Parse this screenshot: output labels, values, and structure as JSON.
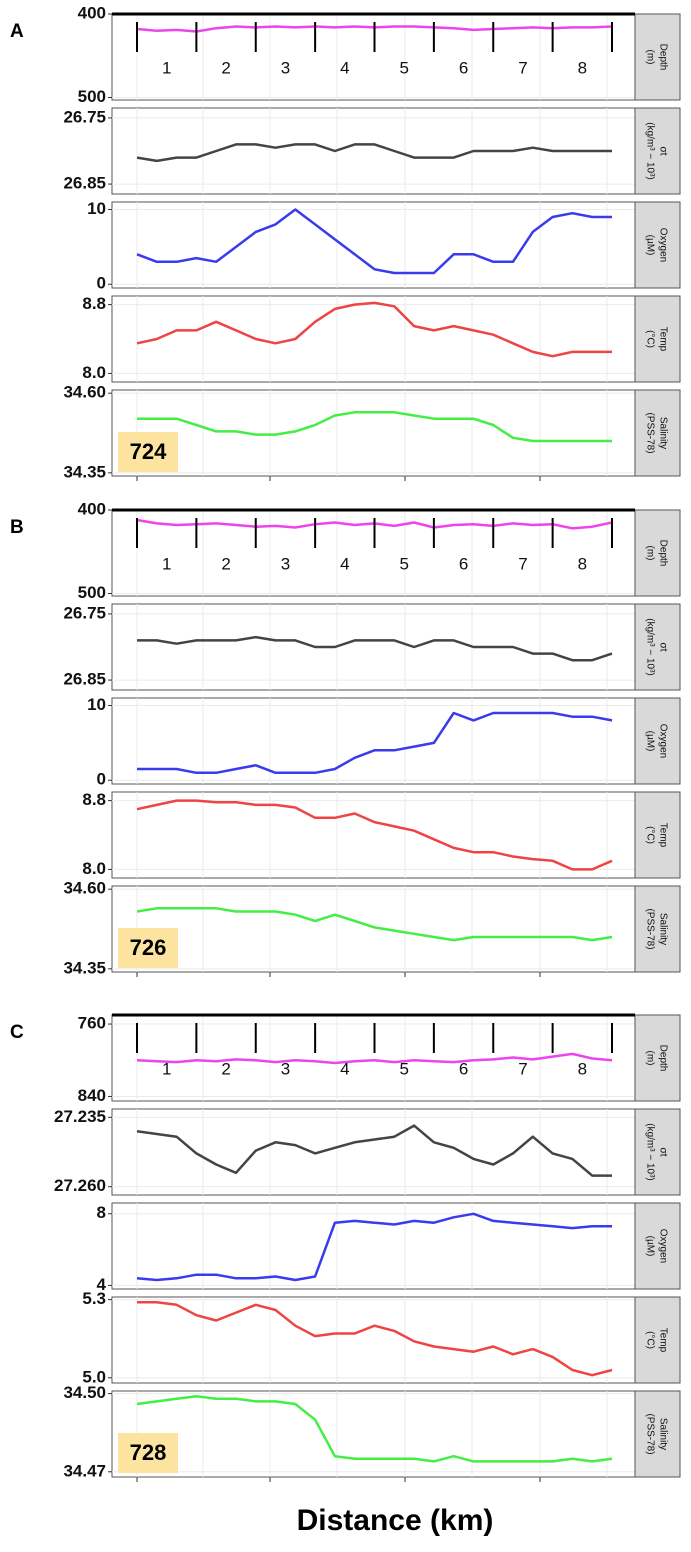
{
  "figure": {
    "xlabel": "Distance (km)"
  },
  "chart_data": [
    {
      "type": "line",
      "panel_label": "A",
      "station": "724",
      "segments": [
        "1",
        "2",
        "3",
        "4",
        "5",
        "6",
        "7",
        "8"
      ],
      "panels": [
        {
          "ylabel": [
            "Depth",
            "(m)"
          ],
          "color": "#ee44ee",
          "ylim": [
            503,
            400
          ],
          "yticks": [
            400,
            500
          ],
          "values": [
            418,
            420,
            419,
            421,
            417,
            415,
            416,
            415,
            416,
            415,
            416,
            415,
            416,
            415,
            415,
            416,
            417,
            419,
            418,
            417,
            416,
            417,
            416,
            416,
            415
          ]
        },
        {
          "ylabel": [
            "σt",
            "(kg/m³ − 10³)"
          ],
          "color": "#444444",
          "ylim": [
            26.865,
            26.735
          ],
          "yticks": [
            26.75,
            26.85
          ],
          "values": [
            26.81,
            26.815,
            26.81,
            26.81,
            26.8,
            26.79,
            26.79,
            26.795,
            26.79,
            26.79,
            26.8,
            26.79,
            26.79,
            26.8,
            26.81,
            26.81,
            26.81,
            26.8,
            26.8,
            26.8,
            26.795,
            26.8,
            26.8,
            26.8,
            26.8
          ]
        },
        {
          "ylabel": [
            "Oxygen",
            "(µM)"
          ],
          "color": "#3a3aee",
          "ylim": [
            -0.5,
            11
          ],
          "yticks": [
            0,
            10
          ],
          "values": [
            4,
            3,
            3,
            3.5,
            3,
            5,
            7,
            8,
            10,
            8,
            6,
            4,
            2,
            1.5,
            1.5,
            1.5,
            4,
            4,
            3,
            3,
            7,
            9,
            9.5,
            9,
            9
          ]
        },
        {
          "ylabel": [
            "Temp",
            "(°C)"
          ],
          "color": "#ee4444",
          "ylim": [
            7.9,
            8.9
          ],
          "yticks": [
            {
              "value": 8,
              "label": "8.0"
            },
            8.8
          ],
          "values": [
            8.35,
            8.4,
            8.5,
            8.5,
            8.6,
            8.5,
            8.4,
            8.35,
            8.4,
            8.6,
            8.75,
            8.8,
            8.82,
            8.78,
            8.55,
            8.5,
            8.55,
            8.5,
            8.45,
            8.35,
            8.25,
            8.2,
            8.25,
            8.25,
            8.25
          ]
        },
        {
          "ylabel": [
            "Salinity",
            "(PSS-78)"
          ],
          "color": "#44ee44",
          "ylim": [
            34.34,
            34.61
          ],
          "yticks": [
            34.35,
            {
              "value": 34.6,
              "label": "34.60"
            }
          ],
          "values": [
            34.52,
            34.52,
            34.52,
            34.5,
            34.48,
            34.48,
            34.47,
            34.47,
            34.48,
            34.5,
            34.53,
            34.54,
            34.54,
            34.54,
            34.53,
            34.52,
            34.52,
            34.52,
            34.5,
            34.46,
            34.45,
            34.45,
            34.45,
            34.45,
            34.45
          ]
        }
      ]
    },
    {
      "type": "line",
      "panel_label": "B",
      "station": "726",
      "segments": [
        "1",
        "2",
        "3",
        "4",
        "5",
        "6",
        "7",
        "8"
      ],
      "panels": [
        {
          "ylabel": [
            "Depth",
            "(m)"
          ],
          "color": "#ee44ee",
          "ylim": [
            503,
            400
          ],
          "yticks": [
            400,
            500
          ],
          "values": [
            412,
            416,
            418,
            417,
            416,
            418,
            420,
            419,
            421,
            417,
            415,
            418,
            416,
            419,
            415,
            421,
            418,
            417,
            419,
            416,
            418,
            417,
            422,
            420,
            415
          ]
        },
        {
          "ylabel": [
            "σt",
            "(kg/m³ − 10³)"
          ],
          "color": "#444444",
          "ylim": [
            26.865,
            26.735
          ],
          "yticks": [
            26.75,
            26.85
          ],
          "values": [
            26.79,
            26.79,
            26.795,
            26.79,
            26.79,
            26.79,
            26.785,
            26.79,
            26.79,
            26.8,
            26.8,
            26.79,
            26.79,
            26.79,
            26.8,
            26.79,
            26.79,
            26.8,
            26.8,
            26.8,
            26.81,
            26.81,
            26.82,
            26.82,
            26.81
          ]
        },
        {
          "ylabel": [
            "Oxygen",
            "(µM)"
          ],
          "color": "#3a3aee",
          "ylim": [
            -0.5,
            11
          ],
          "yticks": [
            0,
            10
          ],
          "values": [
            1.5,
            1.5,
            1.5,
            1,
            1,
            1.5,
            2,
            1,
            1,
            1,
            1.5,
            3,
            4,
            4,
            4.5,
            5,
            9,
            8,
            9,
            9,
            9,
            9,
            8.5,
            8.5,
            8
          ]
        },
        {
          "ylabel": [
            "Temp",
            "(°C)"
          ],
          "color": "#ee4444",
          "ylim": [
            7.9,
            8.9
          ],
          "yticks": [
            {
              "value": 8,
              "label": "8.0"
            },
            8.8
          ],
          "values": [
            8.7,
            8.75,
            8.8,
            8.8,
            8.78,
            8.78,
            8.75,
            8.75,
            8.72,
            8.6,
            8.6,
            8.65,
            8.55,
            8.5,
            8.45,
            8.35,
            8.25,
            8.2,
            8.2,
            8.15,
            8.12,
            8.1,
            8,
            8,
            8.1
          ]
        },
        {
          "ylabel": [
            "Salinity",
            "(PSS-78)"
          ],
          "color": "#44ee44",
          "ylim": [
            34.34,
            34.61
          ],
          "yticks": [
            34.35,
            {
              "value": 34.6,
              "label": "34.60"
            }
          ],
          "values": [
            34.53,
            34.54,
            34.54,
            34.54,
            34.54,
            34.53,
            34.53,
            34.53,
            34.52,
            34.5,
            34.52,
            34.5,
            34.48,
            34.47,
            34.46,
            34.45,
            34.44,
            34.45,
            34.45,
            34.45,
            34.45,
            34.45,
            34.45,
            34.44,
            34.45
          ]
        }
      ]
    },
    {
      "type": "line",
      "panel_label": "C",
      "station": "728",
      "segments": [
        "1",
        "2",
        "3",
        "4",
        "5",
        "6",
        "7",
        "8"
      ],
      "panels": [
        {
          "ylabel": [
            "Depth",
            "(m)"
          ],
          "color": "#ee44ee",
          "ylim": [
            845,
            750
          ],
          "yticks": [
            760,
            840
          ],
          "values": [
            800,
            801,
            802,
            800,
            801,
            799,
            800,
            802,
            800,
            801,
            803,
            801,
            800,
            802,
            800,
            801,
            802,
            800,
            799,
            797,
            799,
            796,
            793,
            798,
            800
          ]
        },
        {
          "ylabel": [
            "σt",
            "(kg/m³ − 10³)"
          ],
          "color": "#444444",
          "ylim": [
            27.263,
            27.232
          ],
          "yticks": [
            27.235,
            {
              "value": 27.26,
              "label": "27.260"
            }
          ],
          "values": [
            27.24,
            27.241,
            27.242,
            27.248,
            27.252,
            27.255,
            27.247,
            27.244,
            27.245,
            27.248,
            27.246,
            27.244,
            27.243,
            27.242,
            27.238,
            27.244,
            27.246,
            27.25,
            27.252,
            27.248,
            27.242,
            27.248,
            27.25,
            27.256,
            27.256
          ]
        },
        {
          "ylabel": [
            "Oxygen",
            "(µM)"
          ],
          "color": "#3a3aee",
          "ylim": [
            3.8,
            8.6
          ],
          "yticks": [
            4,
            8
          ],
          "values": [
            4.4,
            4.3,
            4.4,
            4.6,
            4.6,
            4.4,
            4.4,
            4.5,
            4.3,
            4.5,
            7.5,
            7.6,
            7.5,
            7.4,
            7.6,
            7.5,
            7.8,
            8,
            7.6,
            7.5,
            7.4,
            7.3,
            7.2,
            7.3,
            7.3
          ]
        },
        {
          "ylabel": [
            "Temp",
            "(°C)"
          ],
          "color": "#ee4444",
          "ylim": [
            4.98,
            5.31
          ],
          "yticks": [
            {
              "value": 5,
              "label": "5.0"
            },
            5.3
          ],
          "values": [
            5.29,
            5.29,
            5.28,
            5.24,
            5.22,
            5.25,
            5.28,
            5.26,
            5.2,
            5.16,
            5.17,
            5.17,
            5.2,
            5.18,
            5.14,
            5.12,
            5.11,
            5.1,
            5.12,
            5.09,
            5.11,
            5.08,
            5.03,
            5.01,
            5.03
          ]
        },
        {
          "ylabel": [
            "Salinity",
            "(PSS-78)"
          ],
          "color": "#44ee44",
          "ylim": [
            34.468,
            34.501
          ],
          "yticks": [
            34.47,
            {
              "value": 34.5,
              "label": "34.50"
            }
          ],
          "values": [
            34.496,
            34.497,
            34.498,
            34.499,
            34.498,
            34.498,
            34.497,
            34.497,
            34.496,
            34.49,
            34.476,
            34.475,
            34.475,
            34.475,
            34.475,
            34.474,
            34.476,
            34.474,
            34.474,
            34.474,
            34.474,
            34.474,
            34.475,
            34.474,
            34.475
          ]
        }
      ]
    }
  ]
}
